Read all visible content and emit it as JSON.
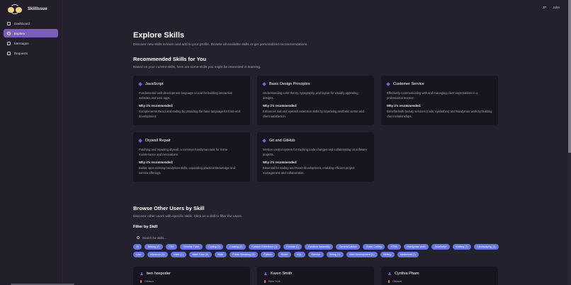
{
  "app": {
    "name": "SkillIssue"
  },
  "user": {
    "initials": "JP",
    "name": "John"
  },
  "sidebar": {
    "items": [
      {
        "label": "Dashboard",
        "icon": "dashboard-icon",
        "active": false
      },
      {
        "label": "Explore",
        "icon": "compass-icon",
        "active": true
      },
      {
        "label": "Messages",
        "icon": "message-icon",
        "active": false
      },
      {
        "label": "Requests",
        "icon": "bell-icon",
        "active": false
      }
    ]
  },
  "page": {
    "title": "Explore Skills",
    "subtitle": "Discover new skills to learn and add to your profile. Browse all available skills or get personalized recommendations."
  },
  "recommended": {
    "title": "Recommended Skills for You",
    "subtitle": "Based on your current skills, here are some skills you might be interested in learning.",
    "why_label": "Why it's recommended:",
    "cards": [
      {
        "title": "JavaScript",
        "description": "Fundamental web development language crucial for building interactive websites and web apps.",
        "why": "Complements React and coding by providing the base language for front-end development."
      },
      {
        "title": "Basic Design Principles",
        "description": "Understanding color theory, typography, and layout for visually appealing designs.",
        "why": "Enhances nail and eyelash extension skills by improving aesthetic sense and client satisfaction."
      },
      {
        "title": "Customer Service",
        "description": "Effectively communicating with and managing client expectations in a professional manner.",
        "why": "Benefits both beauty services (nails, eyelashes) and handyman work by building client relationships."
      },
      {
        "title": "Drywall Repair",
        "description": "Patching and repairing drywall, a common handyman task for home maintenance and renovations.",
        "why": "Builds upon existing handyman skills, expanding practical knowledge and service offerings."
      },
      {
        "title": "Git and GitHub",
        "description": "Version control system for tracking code changes and collaborating on software projects.",
        "why": "Essential for coding and React development, enabling efficient project management and collaboration."
      }
    ]
  },
  "browse": {
    "title": "Browse Other Users by Skill",
    "subtitle": "Discover other users with specific skills. Click on a skill to filter the users.",
    "filter_label": "Filter by Skill",
    "search_placeholder": "Search for skills...",
    "chips": [
      "AI",
      "Baking (2)",
      "CSS",
      "Chinese Tutor",
      "Coding (2)",
      "Cooking (2)",
      "Eyelash Extentions (1)",
      "Fortnite (1)",
      "Furniture Assembly",
      "General Labour",
      "Grass Cutting",
      "HTML",
      "Handyman work",
      "JavaScript",
      "Knitting (1)",
      "Landscaping (1)",
      "Law",
      "Manicure (1)",
      "Math (1)",
      "Math Tutor (2)",
      "Nails",
      "Public Speaking (3)",
      "Python",
      "React",
      "SQL",
      "Science",
      "Skiing (1)",
      "Web Development (1)",
      "Writing",
      "basketball (2)"
    ]
  },
  "users": [
    {
      "name": "ben hospodar",
      "location": "Ottawa"
    },
    {
      "name": "Karen Smith",
      "location": "New York"
    },
    {
      "name": "Cynthia Pham",
      "location": "Ottawa"
    }
  ],
  "colors": {
    "accent": "#7a5fb8",
    "chip": "#6478e0",
    "background": "#24212e",
    "card": "#17151f"
  }
}
